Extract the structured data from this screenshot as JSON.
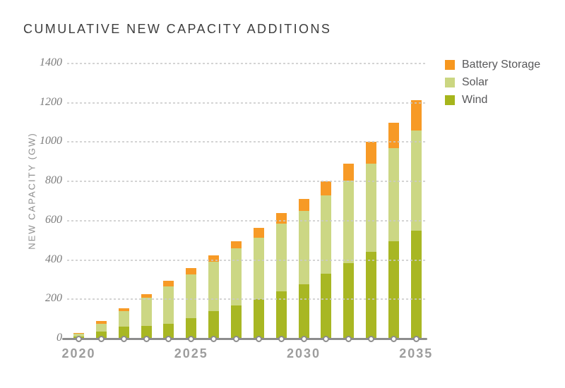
{
  "chart_data": {
    "type": "bar",
    "variant": "stacked-vertical",
    "title": "CUMULATIVE NEW CAPACITY ADDITIONS",
    "xlabel": "",
    "ylabel": "NEW CAPACITY (GW)",
    "categories": [
      "2020",
      "2021",
      "2022",
      "2023",
      "2024",
      "2025",
      "2026",
      "2027",
      "2028",
      "2029",
      "2030",
      "2031",
      "2032",
      "2033",
      "2034",
      "2035"
    ],
    "x_tick_labels": [
      "2020",
      "2025",
      "2030",
      "2035"
    ],
    "x_tick_every": 5,
    "ylim": [
      0,
      1400
    ],
    "yticks": [
      0,
      200,
      400,
      600,
      800,
      1000,
      1200,
      1400
    ],
    "grid": "dashed-horizontal",
    "units": "GW",
    "series": [
      {
        "name": "Wind",
        "color": "#a6b51c",
        "values": [
          10,
          35,
          60,
          65,
          75,
          105,
          140,
          170,
          200,
          240,
          275,
          330,
          385,
          440,
          495,
          550
        ]
      },
      {
        "name": "Solar",
        "color": "#cbd681",
        "values": [
          15,
          40,
          80,
          145,
          190,
          220,
          250,
          290,
          315,
          345,
          375,
          400,
          420,
          450,
          475,
          510
        ]
      },
      {
        "name": "Battery Storage",
        "color": "#f7971f",
        "values": [
          5,
          15,
          15,
          15,
          30,
          35,
          35,
          35,
          50,
          55,
          60,
          70,
          85,
          110,
          130,
          155
        ]
      }
    ],
    "totals": [
      30,
      90,
      155,
      225,
      295,
      360,
      425,
      495,
      565,
      640,
      710,
      800,
      890,
      1000,
      1100,
      1215
    ],
    "legend_position": "top-right",
    "legend_order": [
      "Battery Storage",
      "Solar",
      "Wind"
    ]
  },
  "colors": {
    "title_text": "#3d3d3d",
    "axis_line": "#8d8d8d",
    "grid_line": "#c9c9c9",
    "y_tick_text": "#7b7b7b",
    "x_tick_text": "#9d9d9d",
    "legend_text": "#58585a",
    "background": "#ffffff"
  }
}
